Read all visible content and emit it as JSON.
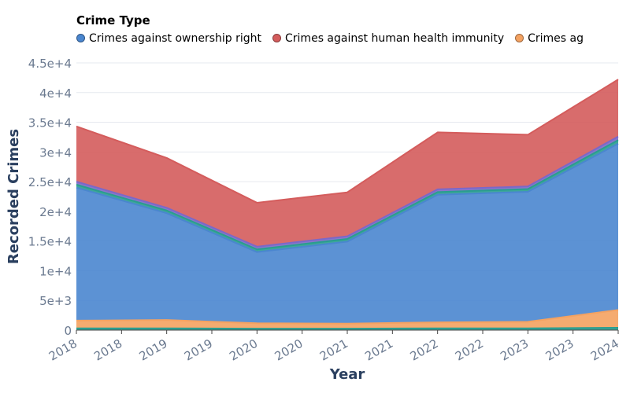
{
  "chart_data": {
    "type": "area",
    "stacked": true,
    "legend_title": "Crime Type",
    "legend_position": "top",
    "xlabel": "Year",
    "ylabel": "Recorded Crimes",
    "x_tick_labels": [
      "2018",
      "2018",
      "2019",
      "2019",
      "2020",
      "2020",
      "2021",
      "2021",
      "2022",
      "2022",
      "2023",
      "2023",
      "2024"
    ],
    "x": [
      2018,
      2019,
      2020,
      2021,
      2022,
      2023,
      2024
    ],
    "xlim": [
      2018,
      2024
    ],
    "ylim": [
      0,
      45000
    ],
    "y_tick_values": [
      0,
      5000,
      10000,
      15000,
      20000,
      25000,
      30000,
      35000,
      40000,
      45000
    ],
    "y_tick_labels": [
      "0",
      "5e+3",
      "1e+4",
      "1.5e+4",
      "2e+4",
      "2.5e+4",
      "3e+4",
      "3.5e+4",
      "4e+4",
      "4.5e+4"
    ],
    "grid": true,
    "series": [
      {
        "name": "",
        "color": "#2a9d8f",
        "values": [
          300,
          300,
          250,
          250,
          300,
          300,
          400
        ]
      },
      {
        "name": "Crimes against ...",
        "color": "#f4a261",
        "values": [
          1300,
          1400,
          900,
          850,
          1000,
          1100,
          3000
        ]
      },
      {
        "name": "Crimes against ownership right",
        "color": "#4a86cf",
        "values": [
          22400,
          18000,
          12000,
          13800,
          21500,
          21900,
          28000
        ]
      },
      {
        "name": "",
        "color": "#2a9d8f",
        "values": [
          500,
          450,
          450,
          450,
          450,
          450,
          600
        ]
      },
      {
        "name": "",
        "color": "#7b68c8",
        "values": [
          500,
          450,
          450,
          450,
          450,
          450,
          600
        ]
      },
      {
        "name": "Crimes against human health immunity",
        "color": "#d45c5c",
        "values": [
          9300,
          8400,
          7400,
          7400,
          9600,
          8700,
          9600
        ]
      }
    ],
    "legend_entries": [
      {
        "label": "Crimes against ownership right",
        "color": "#4a86cf"
      },
      {
        "label": "Crimes against human health immunity",
        "color": "#d45c5c"
      },
      {
        "label": "Crimes ag",
        "color": "#f4a261"
      }
    ]
  }
}
